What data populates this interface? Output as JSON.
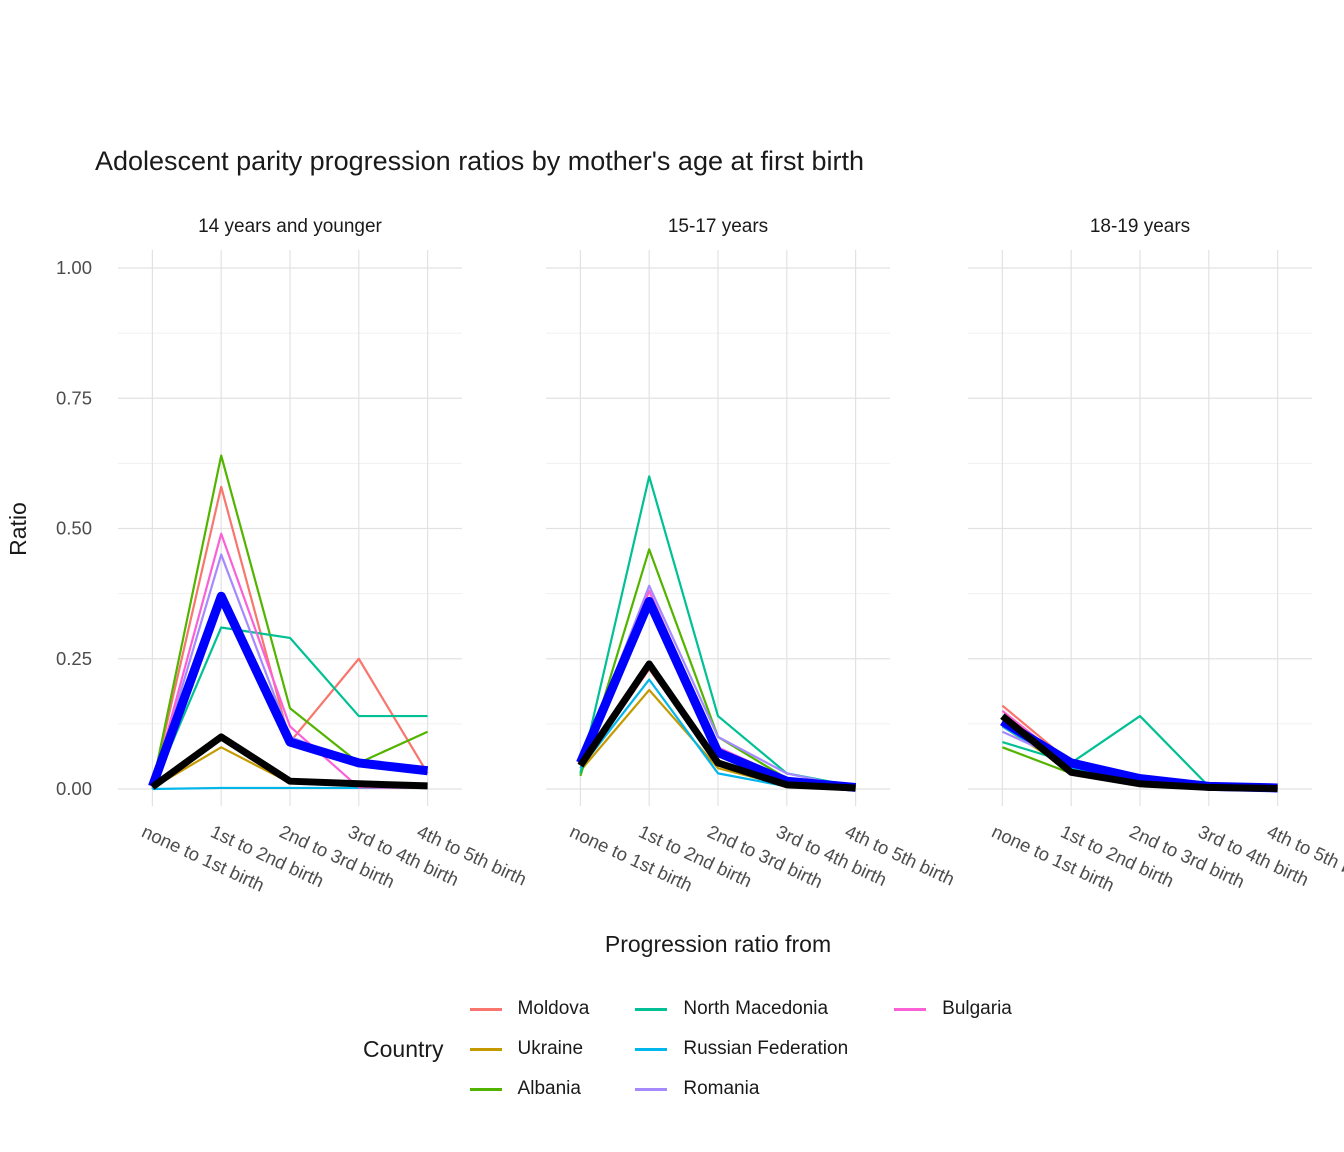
{
  "title": "Adolescent parity progression ratios by mother's age at first birth",
  "chart_data": {
    "type": "line",
    "title": "Adolescent parity progression ratios by mother's age at first birth",
    "xlabel": "Progression ratio from",
    "ylabel": "Ratio",
    "ylim": [
      0,
      1
    ],
    "y_ticks": [
      0.0,
      0.25,
      0.5,
      0.75,
      1.0
    ],
    "y_tick_labels": [
      "0.00",
      "0.25",
      "0.50",
      "0.75",
      "1.00"
    ],
    "y_minor_ticks": [
      0.125,
      0.375,
      0.625,
      0.875
    ],
    "grid": true,
    "facets": [
      "14 years and younger",
      "15-17 years",
      "18-19 years"
    ],
    "categories": [
      "none to 1st birth",
      "1st to 2nd birth",
      "2nd to 3rd birth",
      "3rd to 4th birth",
      "4th to 5th birth"
    ],
    "series": [
      {
        "name": "Moldova",
        "color": "#F8766D",
        "width": 2.2,
        "in_legend": true,
        "values_by_facet": [
          [
            0.005,
            0.58,
            0.09,
            0.25,
            0.03
          ],
          [
            0.04,
            0.23,
            0.05,
            0.01,
            0.0
          ],
          [
            0.16,
            0.05,
            0.012,
            0.002,
            0.0
          ]
        ]
      },
      {
        "name": "Ukraine",
        "color": "#C49A00",
        "width": 2.2,
        "in_legend": true,
        "values_by_facet": [
          [
            0.002,
            0.08,
            0.012,
            0.006,
            0.002
          ],
          [
            0.035,
            0.19,
            0.04,
            0.006,
            0.001
          ],
          [
            0.12,
            0.035,
            0.01,
            0.003,
            0.001
          ]
        ]
      },
      {
        "name": "Albania",
        "color": "#53B400",
        "width": 2.2,
        "in_legend": true,
        "values_by_facet": [
          [
            0.005,
            0.64,
            0.155,
            0.05,
            0.11
          ],
          [
            0.025,
            0.46,
            0.1,
            0.02,
            0.002
          ],
          [
            0.08,
            0.03,
            0.01,
            0.002,
            0.0
          ]
        ]
      },
      {
        "name": "North Macedonia",
        "color": "#00C094",
        "width": 2.2,
        "in_legend": true,
        "values_by_facet": [
          [
            0.0,
            0.31,
            0.29,
            0.14,
            0.14
          ],
          [
            0.03,
            0.6,
            0.14,
            0.03,
            0.005
          ],
          [
            0.09,
            0.05,
            0.14,
            0.005,
            0.0
          ]
        ]
      },
      {
        "name": "Russian Federation",
        "color": "#00B6EB",
        "width": 2.2,
        "in_legend": true,
        "values_by_facet": [
          [
            0.0,
            0.002,
            0.002,
            0.002,
            0.002
          ],
          [
            0.04,
            0.21,
            0.03,
            0.005,
            0.001
          ],
          [
            0.12,
            0.04,
            0.012,
            0.003,
            0.001
          ]
        ]
      },
      {
        "name": "Romania",
        "color": "#A58AFF",
        "width": 2.2,
        "in_legend": true,
        "values_by_facet": [
          [
            0.003,
            0.45,
            0.1,
            0.05,
            0.03
          ],
          [
            0.05,
            0.39,
            0.1,
            0.03,
            0.002
          ],
          [
            0.11,
            0.05,
            0.02,
            0.005,
            0.001
          ]
        ]
      },
      {
        "name": "Bulgaria",
        "color": "#FB61D7",
        "width": 2.2,
        "in_legend": true,
        "values_by_facet": [
          [
            0.003,
            0.49,
            0.12,
            0.003,
            0.002
          ],
          [
            0.05,
            0.38,
            0.08,
            0.02,
            0.002
          ],
          [
            0.15,
            0.045,
            0.015,
            0.003,
            0.001
          ]
        ]
      },
      {
        "name": "unlabeled thick blue line",
        "color": "#0000FF",
        "width": 9,
        "in_legend": false,
        "values_by_facet": [
          [
            0.005,
            0.37,
            0.09,
            0.05,
            0.035
          ],
          [
            0.05,
            0.36,
            0.07,
            0.015,
            0.003
          ],
          [
            0.13,
            0.05,
            0.02,
            0.005,
            0.002
          ]
        ]
      },
      {
        "name": "unlabeled thick black line",
        "color": "#000000",
        "width": 7,
        "in_legend": false,
        "values_by_facet": [
          [
            0.004,
            0.1,
            0.015,
            0.01,
            0.006
          ],
          [
            0.045,
            0.24,
            0.05,
            0.008,
            0.002
          ],
          [
            0.14,
            0.032,
            0.01,
            0.003,
            0.001
          ]
        ]
      }
    ],
    "legend": {
      "title": "Country",
      "position": "bottom",
      "entries": [
        {
          "label": "Moldova",
          "color": "#F8766D"
        },
        {
          "label": "Ukraine",
          "color": "#C49A00"
        },
        {
          "label": "Albania",
          "color": "#53B400"
        },
        {
          "label": "North Macedonia",
          "color": "#00C094"
        },
        {
          "label": "Russian Federation",
          "color": "#00B6EB"
        },
        {
          "label": "Romania",
          "color": "#A58AFF"
        },
        {
          "label": "Bulgaria",
          "color": "#FB61D7"
        }
      ]
    },
    "style": {
      "grid_major_color": "#E2E2E2",
      "grid_minor_color": "#F0F0F0",
      "tick_label_color": "#4D4D4D",
      "text_color": "#1a1a1a",
      "background": "#ffffff"
    }
  }
}
